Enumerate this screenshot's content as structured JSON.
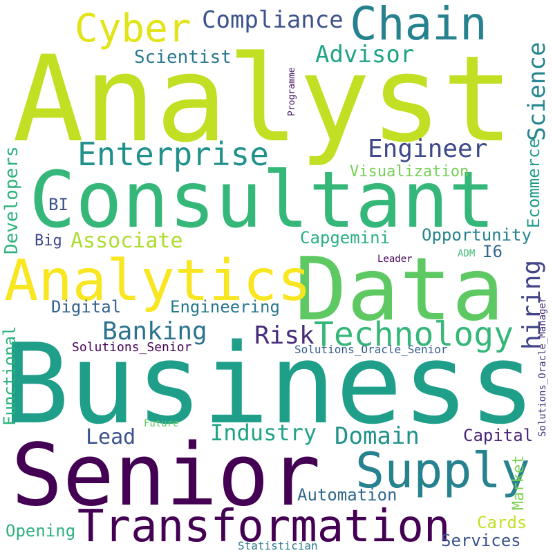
{
  "words": [
    {
      "text": "Analyst",
      "color": "#c2df23"
    },
    {
      "text": "Business",
      "color": "#1f9e89"
    },
    {
      "text": "Consultant",
      "color": "#35b779"
    },
    {
      "text": "Senior",
      "color": "#440154"
    },
    {
      "text": "Data",
      "color": "#5ec962"
    },
    {
      "text": "Analytics",
      "color": "#f8e621"
    },
    {
      "text": "Transformation",
      "color": "#440154"
    },
    {
      "text": "Supply",
      "color": "#26828e"
    },
    {
      "text": "Chain",
      "color": "#26828e"
    },
    {
      "text": "Cyber",
      "color": "#e2e418"
    },
    {
      "text": "Enterprise",
      "color": "#21918c"
    },
    {
      "text": "Technology",
      "color": "#35b779"
    },
    {
      "text": "Compliance",
      "color": "#3b528b"
    },
    {
      "text": "Advisor",
      "color": "#20a486"
    },
    {
      "text": "Engineer",
      "color": "#3e4989"
    },
    {
      "text": "Science",
      "color": "#25858e"
    },
    {
      "text": "Scientist",
      "color": "#2a788e"
    },
    {
      "text": "Programme",
      "color": "#481467"
    },
    {
      "text": "Banking",
      "color": "#2c728e"
    },
    {
      "text": "Risk",
      "color": "#472d7b"
    },
    {
      "text": "hiring",
      "color": "#414487"
    },
    {
      "text": "Associate",
      "color": "#addc30"
    },
    {
      "text": "Visualization",
      "color": "#75d054"
    },
    {
      "text": "Ecommerce",
      "color": "#1f9a8a"
    },
    {
      "text": "Developers",
      "color": "#2db27d"
    },
    {
      "text": "BI",
      "color": "#3b528b"
    },
    {
      "text": "Big",
      "color": "#3f4788"
    },
    {
      "text": "Capgemini",
      "color": "#29af7f"
    },
    {
      "text": "Opportunity",
      "color": "#25838e"
    },
    {
      "text": "I6",
      "color": "#31688e"
    },
    {
      "text": "Digital",
      "color": "#33638d"
    },
    {
      "text": "Engineering",
      "color": "#2a788e"
    },
    {
      "text": "Leader",
      "color": "#440154"
    },
    {
      "text": "ADM",
      "color": "#3dbc74"
    },
    {
      "text": "Solutions_Oracle_Manager",
      "color": "#46327e"
    },
    {
      "text": "Solutions_Senior",
      "color": "#440154"
    },
    {
      "text": "Solutions_Oracle_Senior",
      "color": "#365c8d"
    },
    {
      "text": "Functional",
      "color": "#2db27d"
    },
    {
      "text": "Industry",
      "color": "#20a486"
    },
    {
      "text": "Lead",
      "color": "#3b528b"
    },
    {
      "text": "Future",
      "color": "#5ec962"
    },
    {
      "text": "Domain",
      "color": "#21918c"
    },
    {
      "text": "Capital",
      "color": "#482576"
    },
    {
      "text": "Market",
      "color": "#7ad151"
    },
    {
      "text": "Automation",
      "color": "#31688e"
    },
    {
      "text": "Cards",
      "color": "#c2df23"
    },
    {
      "text": "Opening",
      "color": "#2db27d"
    },
    {
      "text": "Services",
      "color": "#3b528b"
    },
    {
      "text": "Statistician",
      "color": "#2a788e"
    }
  ]
}
